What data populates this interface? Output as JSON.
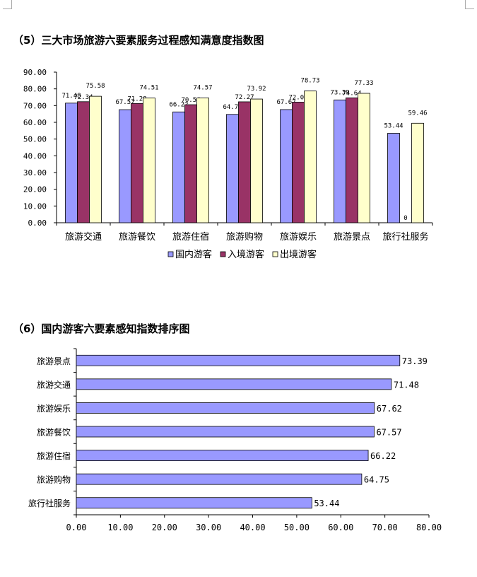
{
  "section5": {
    "title": "（5）三大市场旅游六要素服务过程感知满意度指数图"
  },
  "section6": {
    "title": "（6）国内游客六要素感知指数排序图"
  },
  "colors": {
    "domestic": "#9999ff",
    "inbound": "#993366",
    "outbound": "#ffffcc"
  },
  "chart_data": [
    {
      "type": "bar",
      "title": "（5）三大市场旅游六要素服务过程感知满意度指数图",
      "categories": [
        "旅游交通",
        "旅游餐饮",
        "旅游住宿",
        "旅游购物",
        "旅游娱乐",
        "旅游景点",
        "旅行社服务"
      ],
      "series": [
        {
          "name": "国内游客",
          "values": [
            71.48,
            67.57,
            66.22,
            64.75,
            67.62,
            73.39,
            53.44
          ]
        },
        {
          "name": "入境游客",
          "values": [
            72.34,
            71.28,
            70.54,
            72.27,
            72.07,
            74.64,
            0
          ]
        },
        {
          "name": "出境游客",
          "values": [
            75.58,
            74.51,
            74.57,
            73.92,
            78.73,
            77.33,
            59.46
          ]
        }
      ],
      "data_labels": [
        [
          "71.48",
          "67.57",
          "66.22",
          "64.75",
          "67.62",
          "73.39",
          "53.44"
        ],
        [
          "72.34",
          "71.28",
          "70.54",
          "72.27",
          "72.07",
          "74.64",
          "0"
        ],
        [
          "75.58",
          "74.51",
          "74.57",
          "73.92",
          "78.73",
          "77.33",
          "59.46"
        ]
      ],
      "yticks": [
        "0.00",
        "10.00",
        "20.00",
        "30.00",
        "40.00",
        "50.00",
        "60.00",
        "70.00",
        "80.00",
        "90.00"
      ],
      "ylim": [
        0,
        90
      ],
      "grid": false,
      "legend": "bottom"
    },
    {
      "type": "bar",
      "orientation": "horizontal",
      "title": "（6）国内游客六要素感知指数排序图",
      "categories": [
        "旅游景点",
        "旅游交通",
        "旅游娱乐",
        "旅游餐饮",
        "旅游住宿",
        "旅游购物",
        "旅行社服务"
      ],
      "values": [
        73.39,
        71.48,
        67.62,
        67.57,
        66.22,
        64.75,
        53.44
      ],
      "data_labels": [
        "73.39",
        "71.48",
        "67.62",
        "67.57",
        "66.22",
        "64.75",
        "53.44"
      ],
      "xticks": [
        "0.00",
        "10.00",
        "20.00",
        "30.00",
        "40.00",
        "50.00",
        "60.00",
        "70.00",
        "80.00"
      ],
      "xlim": [
        0,
        80
      ],
      "grid": false
    }
  ]
}
